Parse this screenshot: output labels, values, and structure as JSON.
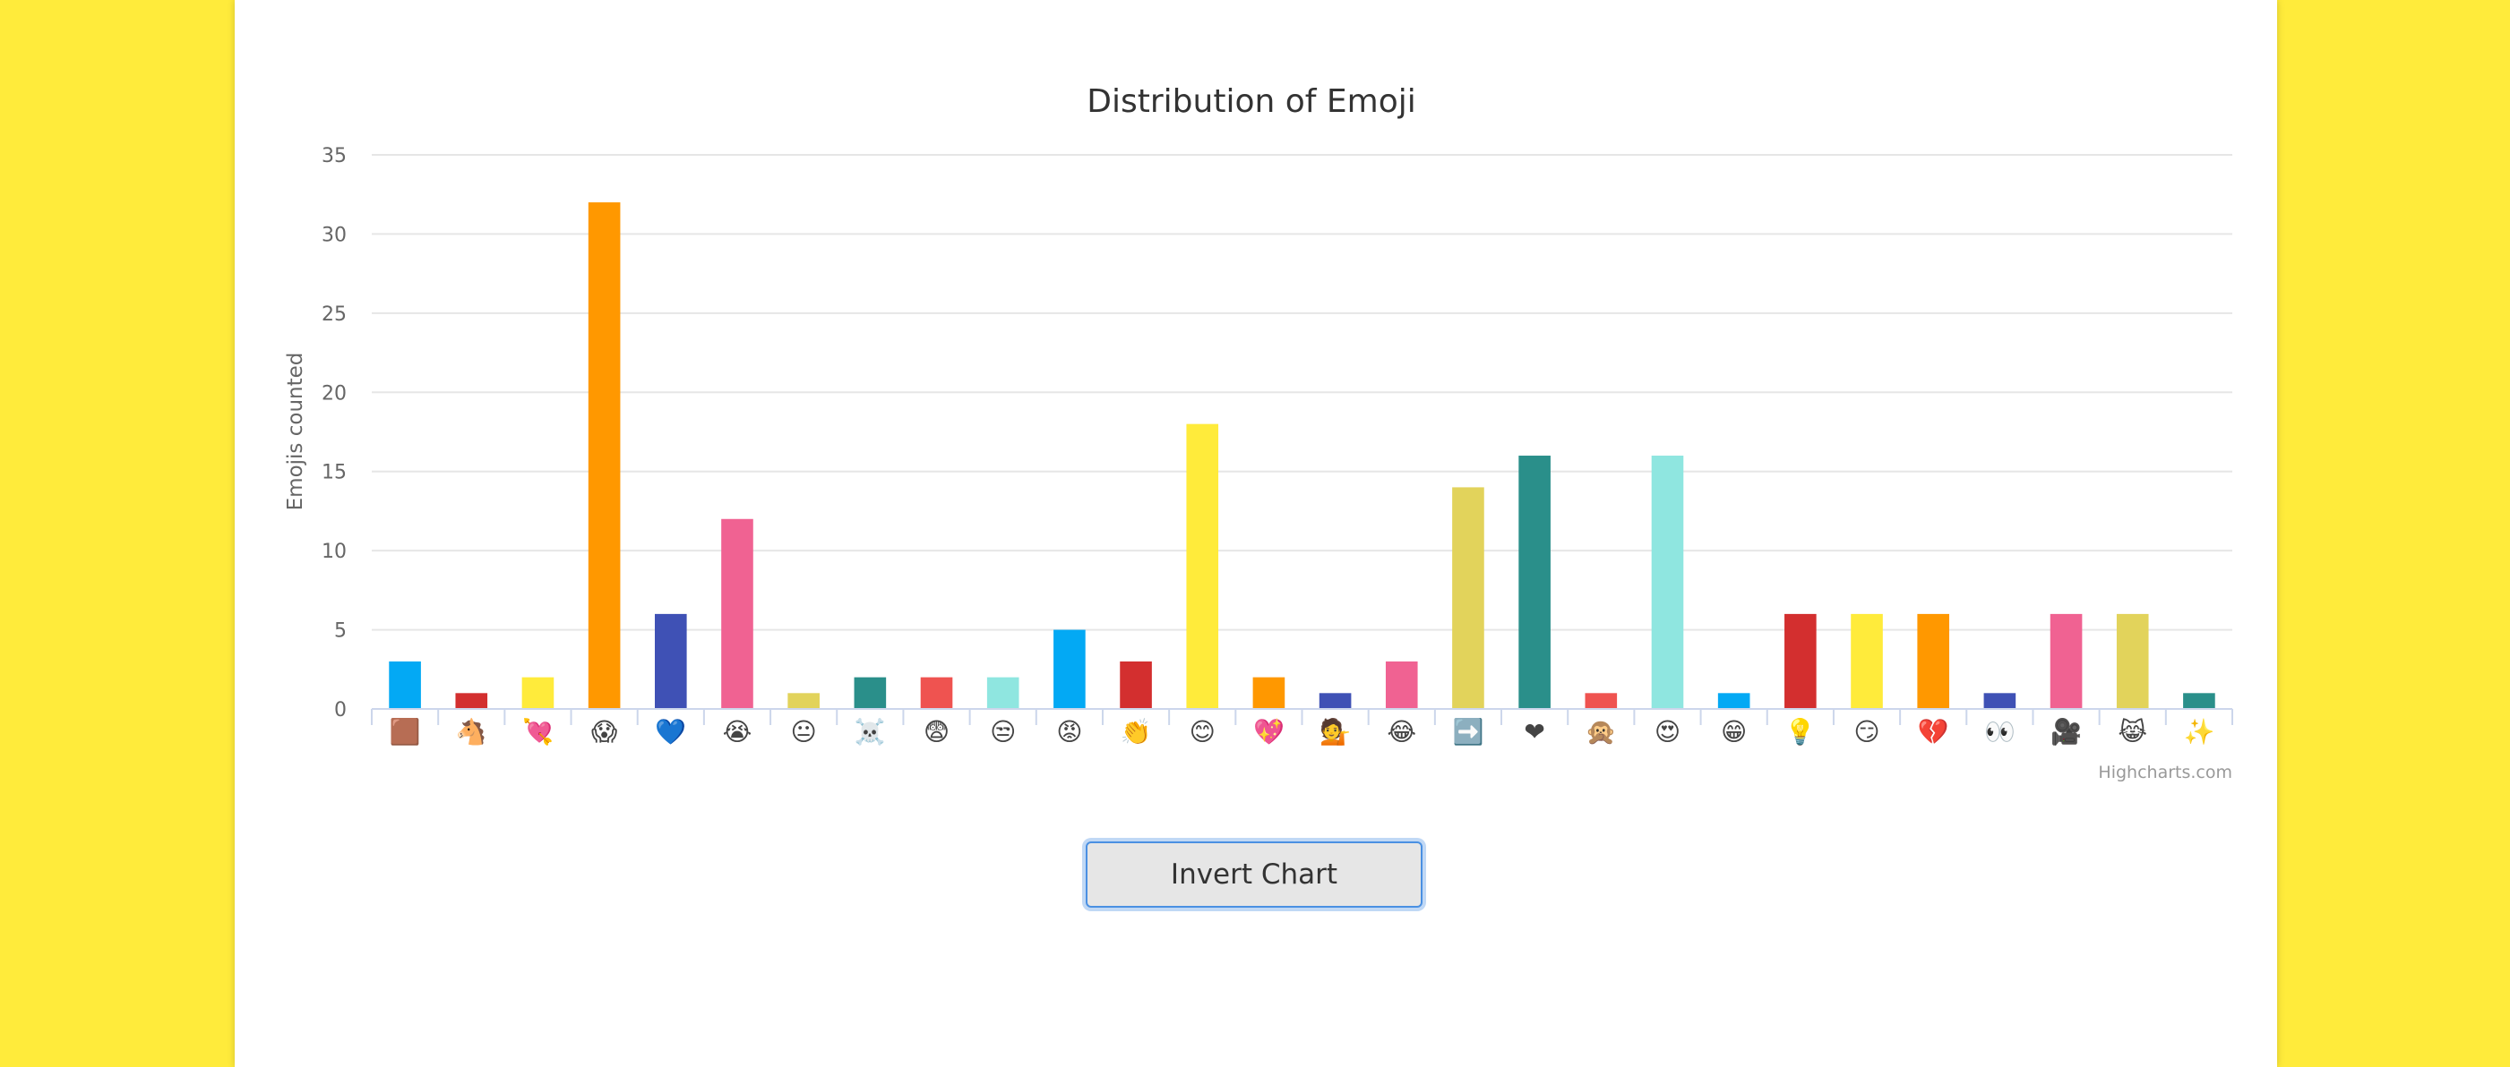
{
  "colors": {
    "page_background": "#FFEB3B",
    "card_background": "#ffffff",
    "grid": "#e6e6e6",
    "axis_text": "#666666",
    "title_text": "#333333",
    "credits_text": "#999999"
  },
  "button": {
    "label": "Invert Chart"
  },
  "credits": "Highcharts.com",
  "chart_data": {
    "type": "bar",
    "title": "Distribution of Emoji",
    "xlabel": "",
    "ylabel": "Emojis counted",
    "ylim": [
      0,
      35
    ],
    "yticks": [
      0,
      5,
      10,
      15,
      20,
      25,
      30,
      35
    ],
    "grid": true,
    "legend": "none",
    "categories": [
      "🟫",
      "🐴",
      "💘",
      "😱",
      "💙",
      "😭",
      "😐",
      "☠️",
      "😨",
      "😒",
      "😡",
      "👏",
      "😊",
      "💖",
      "💁",
      "😂",
      "➡️",
      "❤",
      "🙊",
      "😍",
      "😁",
      "💡",
      "😏",
      "💔",
      "👀",
      "🎥",
      "😹",
      "✨"
    ],
    "values": [
      3,
      1,
      2,
      32,
      6,
      12,
      1,
      2,
      2,
      2,
      5,
      3,
      18,
      2,
      1,
      3,
      14,
      16,
      1,
      16,
      1,
      6,
      6,
      6,
      1,
      6,
      6,
      1
    ],
    "bar_colors": [
      "#03A9F4",
      "#D32F2F",
      "#FFEB3B",
      "#FF9800",
      "#3F51B5",
      "#F06292",
      "#E2D35B",
      "#2A8F8A",
      "#EF5350",
      "#8FE6E0",
      "#03A9F4",
      "#D32F2F",
      "#FFEB3B",
      "#FF9800",
      "#3F51B5",
      "#F06292",
      "#E2D35B",
      "#2A8F8A",
      "#EF5350",
      "#8FE6E0",
      "#03A9F4",
      "#D32F2F",
      "#FFEB3B",
      "#FF9800",
      "#3F51B5",
      "#F06292",
      "#E2D35B",
      "#2A8F8A"
    ]
  }
}
